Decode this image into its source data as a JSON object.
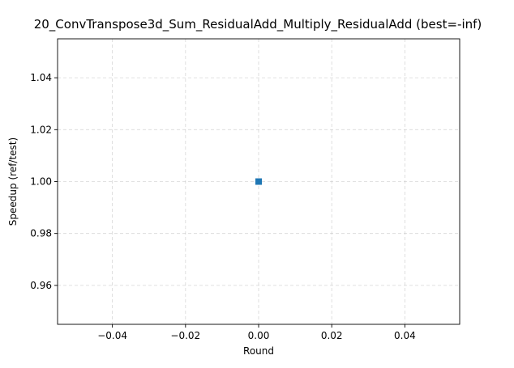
{
  "chart_data": {
    "type": "scatter",
    "title": "20_ConvTranspose3d_Sum_ResidualAdd_Multiply_ResidualAdd (best=-inf)",
    "xlabel": "Round",
    "ylabel": "Speedup (ref/test)",
    "xlim": [
      -0.055,
      0.055
    ],
    "ylim": [
      0.945,
      1.055
    ],
    "xticks": [
      -0.04,
      -0.02,
      0.0,
      0.02,
      0.04
    ],
    "xtick_labels": [
      "−0.04",
      "−0.02",
      "0.00",
      "0.02",
      "0.04"
    ],
    "yticks": [
      0.96,
      0.98,
      1.0,
      1.02,
      1.04
    ],
    "ytick_labels": [
      "0.96",
      "0.98",
      "1.00",
      "1.02",
      "1.04"
    ],
    "grid": true,
    "marker": "square",
    "series": [
      {
        "x": [
          0
        ],
        "y": [
          1.0
        ],
        "color": "#1f77b4"
      }
    ]
  }
}
